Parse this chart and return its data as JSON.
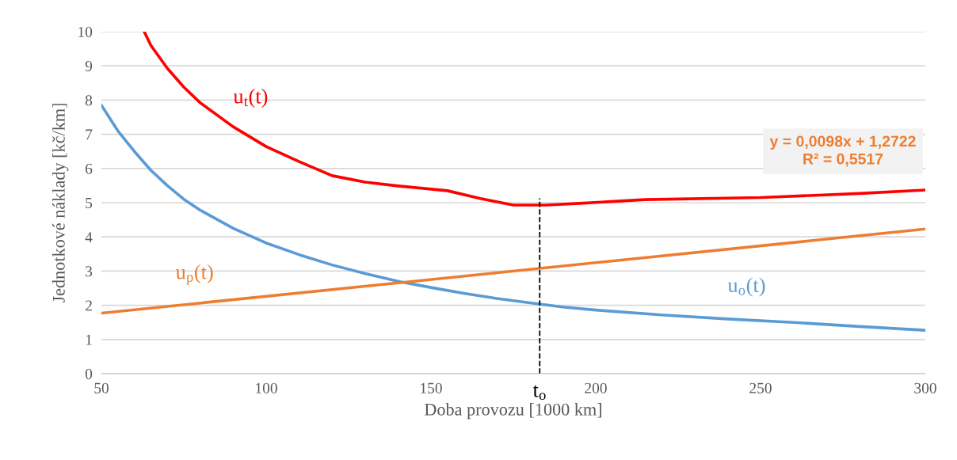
{
  "chart_data": {
    "type": "line",
    "xlabel": "Doba provozu [1000 km]",
    "ylabel": "Jednotkové náklady [kč/km]",
    "xlim": [
      50,
      300
    ],
    "xticks": [
      50,
      100,
      150,
      200,
      250,
      300
    ],
    "ylim": [
      0,
      10
    ],
    "yticks": [
      0,
      1,
      2,
      3,
      4,
      5,
      6,
      7,
      8,
      9,
      10
    ],
    "grid": "y",
    "legend": false,
    "marker": "none",
    "line_style": "solid",
    "series": [
      {
        "name": "u$_{t}$(t)",
        "color": "#ff0000",
        "x": [
          63,
          65,
          70,
          75,
          80,
          90,
          100,
          110,
          120,
          130,
          140,
          155,
          165,
          175,
          185,
          195,
          215,
          250,
          280,
          300
        ],
        "values": [
          10,
          9.6,
          8.93,
          8.38,
          7.92,
          7.22,
          6.64,
          6.2,
          5.79,
          5.6,
          5.49,
          5.35,
          5.12,
          4.93,
          4.93,
          4.98,
          5.09,
          5.15,
          5.27,
          5.37
        ]
      },
      {
        "name": "u$_{o}$(t)",
        "color": "#5b9bd5",
        "x": [
          50,
          55,
          60,
          65,
          70,
          75,
          80,
          90,
          100,
          110,
          120,
          130,
          140,
          150,
          160,
          170,
          180,
          190,
          200,
          220,
          240,
          260,
          280,
          300
        ],
        "values": [
          7.85,
          7.1,
          6.5,
          5.95,
          5.5,
          5.1,
          4.78,
          4.25,
          3.82,
          3.48,
          3.18,
          2.93,
          2.7,
          2.52,
          2.35,
          2.2,
          2.07,
          1.95,
          1.86,
          1.72,
          1.6,
          1.5,
          1.38,
          1.27
        ]
      },
      {
        "name": "u$_{p}$(t)",
        "color": "#ed7d31",
        "x": [
          50,
          300
        ],
        "values": [
          1.77,
          4.23
        ]
      }
    ],
    "ref_lines": [
      {
        "axis": "x",
        "value": 183,
        "label": "t$_{o}$",
        "color": "#000000",
        "line_style": "dashed"
      }
    ],
    "annotations": [
      "y = 0,0098x + 1,2722\nR² = 0,5517"
    ]
  }
}
